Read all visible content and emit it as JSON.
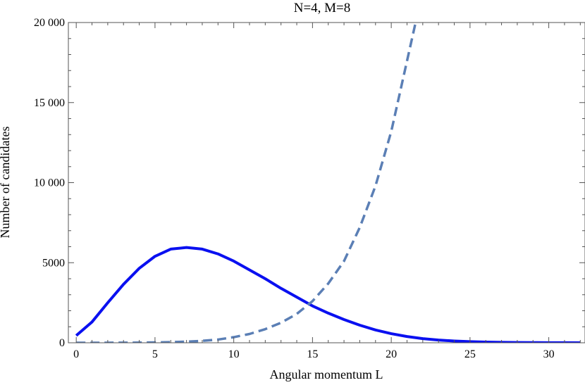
{
  "chart_data": {
    "type": "line",
    "title": "N=4, M=8",
    "xlabel": "Angular momentum L",
    "ylabel": "Number of candidates",
    "xlim": [
      -0.5,
      32.3
    ],
    "ylim": [
      0,
      20000
    ],
    "x_ticks": [
      0,
      5,
      10,
      15,
      20,
      25,
      30
    ],
    "y_ticks": [
      0,
      5000,
      10000,
      15000,
      20000
    ],
    "y_tick_labels": [
      "0",
      "5000",
      "10 000",
      "15 000",
      "20 000"
    ],
    "x_minor_step": 1,
    "y_minor_step": 1000,
    "grid": false,
    "legend": "none",
    "series": [
      {
        "style": "solid",
        "color": "#0a10f0",
        "x": [
          0,
          1,
          2,
          3,
          4,
          5,
          6,
          7,
          8,
          9,
          10,
          11,
          12,
          13,
          14,
          15,
          16,
          17,
          18,
          19,
          20,
          21,
          22,
          23,
          24,
          25,
          26,
          27,
          28,
          29,
          30,
          31,
          32
        ],
        "y": [
          450,
          1300,
          2500,
          3650,
          4650,
          5400,
          5850,
          5950,
          5850,
          5550,
          5100,
          4550,
          4000,
          3400,
          2850,
          2300,
          1850,
          1450,
          1100,
          800,
          570,
          390,
          260,
          170,
          110,
          70,
          45,
          28,
          17,
          10,
          6,
          3,
          2
        ]
      },
      {
        "style": "dashed",
        "color": "#5b7fb5",
        "x": [
          0,
          1,
          2,
          3,
          4,
          5,
          6,
          7,
          8,
          9,
          10,
          11,
          12,
          13,
          14,
          15,
          16,
          17,
          18,
          19,
          20,
          21,
          22
        ],
        "y": [
          0,
          0,
          2,
          5,
          10,
          20,
          40,
          70,
          120,
          200,
          350,
          550,
          850,
          1250,
          1800,
          2600,
          3700,
          5100,
          7200,
          9800,
          13200,
          17600,
          22000
        ]
      }
    ]
  }
}
